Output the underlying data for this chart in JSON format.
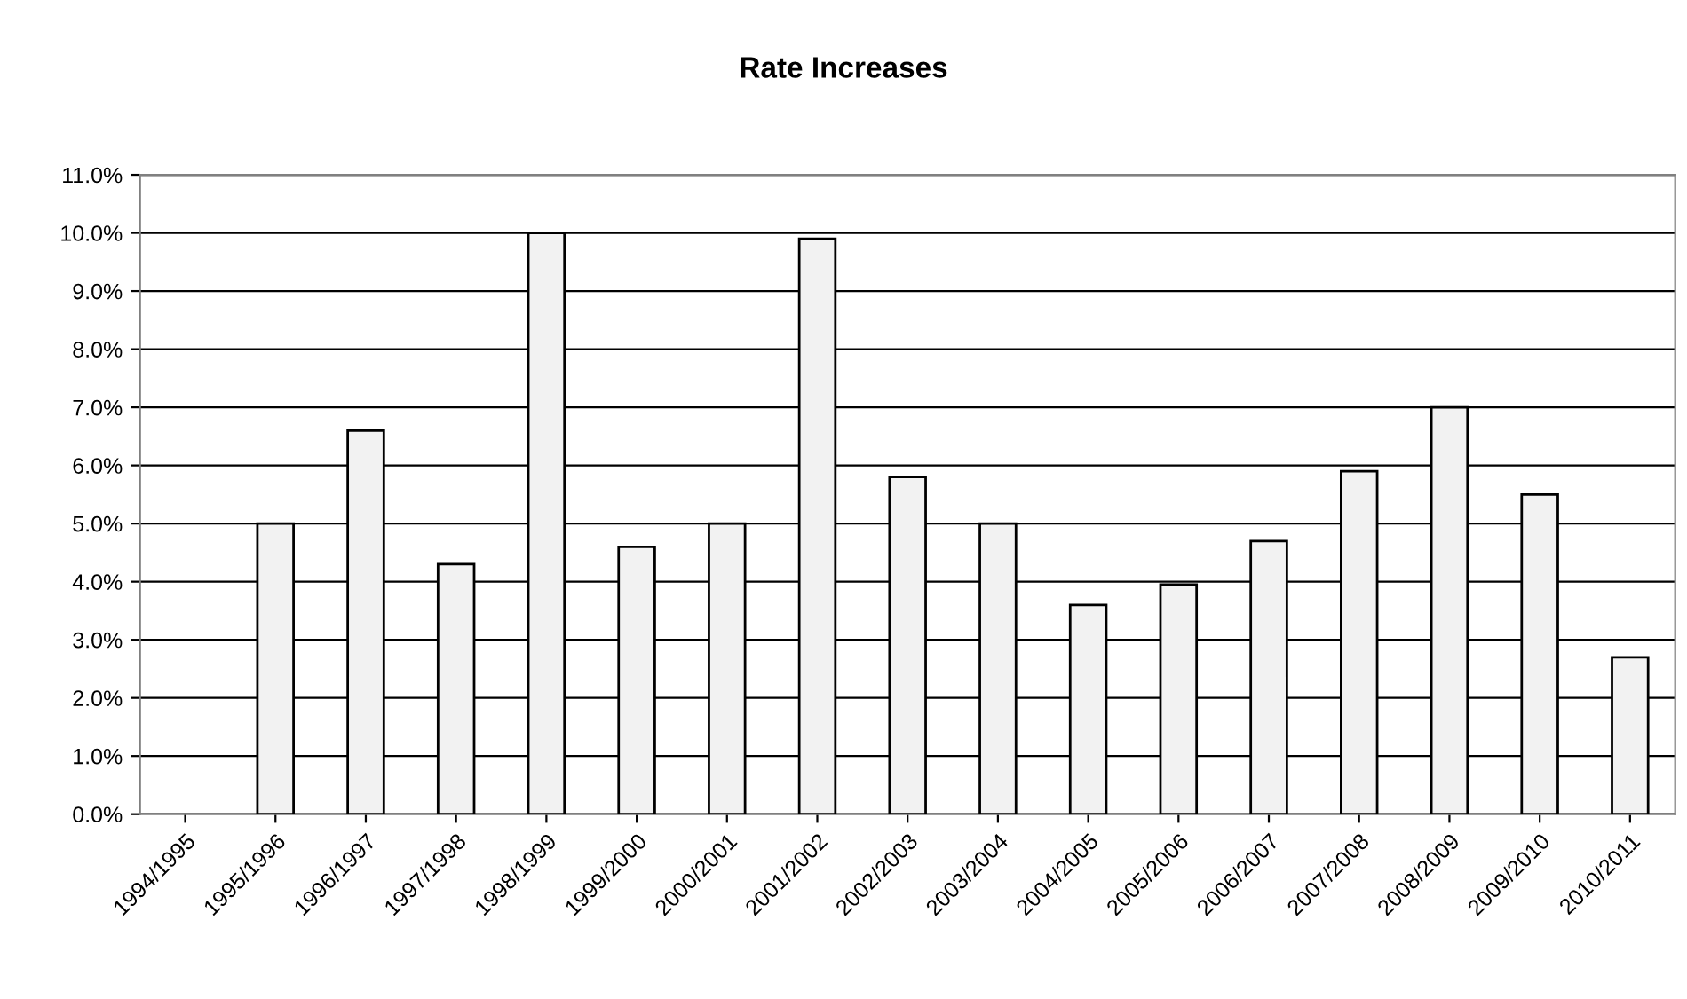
{
  "chart_data": {
    "type": "bar",
    "title": "Rate Increases",
    "categories": [
      "1994/1995",
      "1995/1996",
      "1996/1997",
      "1997/1998",
      "1998/1999",
      "1999/2000",
      "2000/2001",
      "2001/2002",
      "2002/2003",
      "2003/2004",
      "2004/2005",
      "2005/2006",
      "2006/2007",
      "2007/2008",
      "2008/2009",
      "2009/2010",
      "2010/2011"
    ],
    "values": [
      null,
      5.0,
      6.6,
      4.3,
      10.0,
      4.6,
      5.0,
      9.9,
      5.8,
      5.0,
      3.6,
      3.95,
      4.7,
      5.9,
      7.0,
      5.5,
      2.7
    ],
    "color": "#f2f2f2",
    "ylim": [
      0,
      11
    ],
    "yticks": [
      {
        "value": 0,
        "label": "0.0%"
      },
      {
        "value": 1,
        "label": "1.0%"
      },
      {
        "value": 2,
        "label": "2.0%"
      },
      {
        "value": 3,
        "label": "3.0%"
      },
      {
        "value": 4,
        "label": "4.0%"
      },
      {
        "value": 5,
        "label": "5.0%"
      },
      {
        "value": 6,
        "label": "6.0%"
      },
      {
        "value": 7,
        "label": "7.0%"
      },
      {
        "value": 8,
        "label": "8.0%"
      },
      {
        "value": 9,
        "label": "9.0%"
      },
      {
        "value": 10,
        "label": "10.0%"
      },
      {
        "value": 11,
        "label": "11.0%"
      }
    ],
    "grid": "y",
    "legend": false
  }
}
